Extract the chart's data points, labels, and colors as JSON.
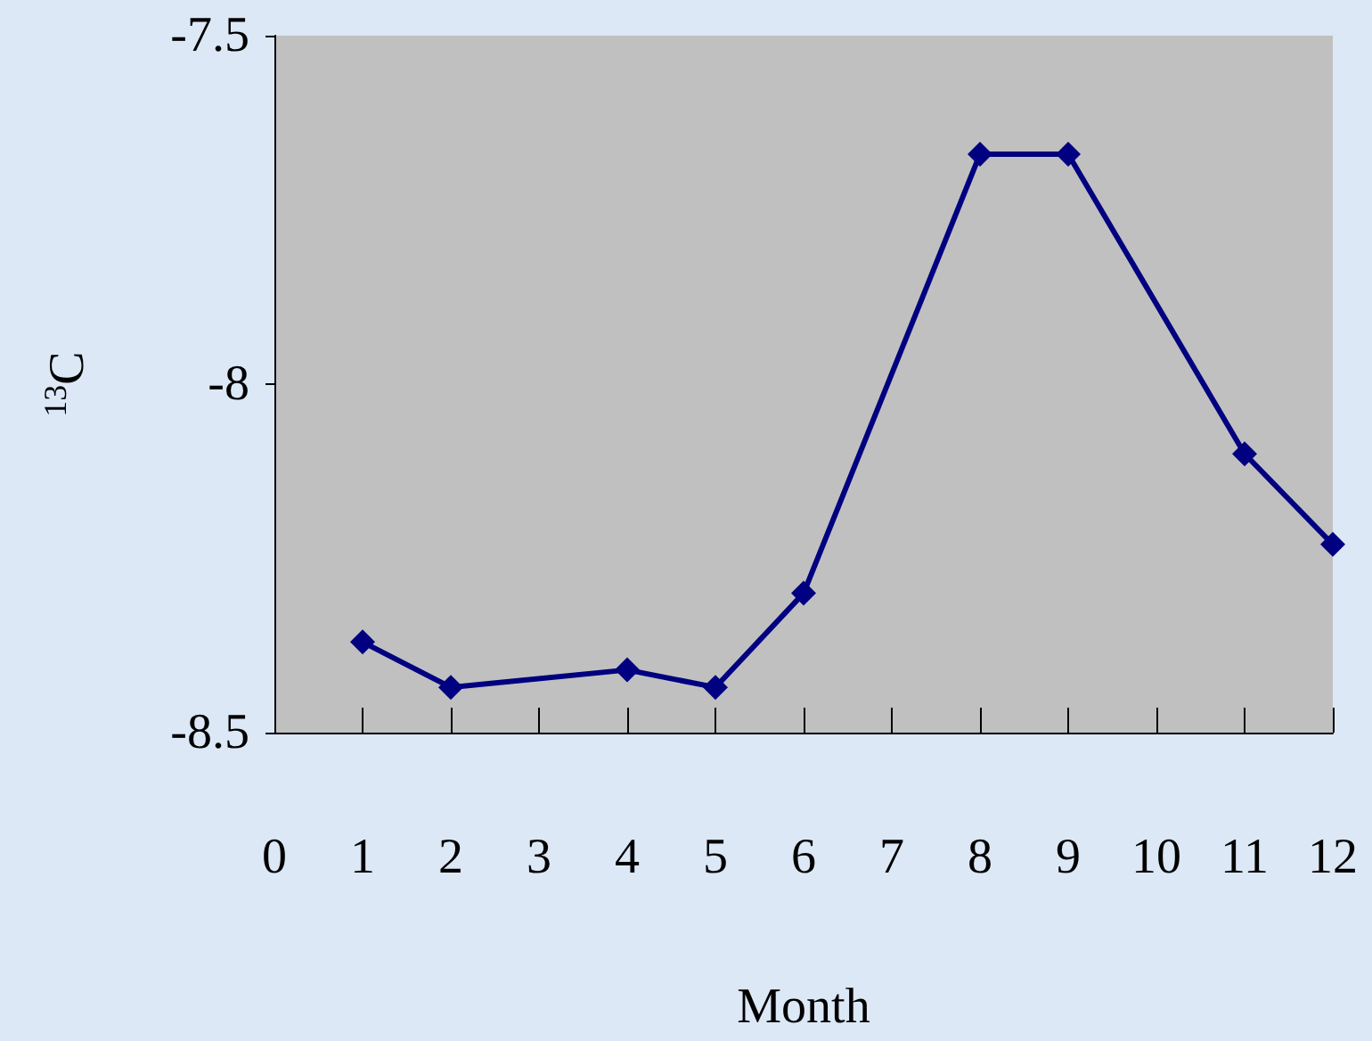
{
  "chart_data": {
    "type": "line",
    "xlabel": "Month",
    "ylabel": "$^{13}$C",
    "x": [
      1,
      2,
      4,
      5,
      6,
      8,
      9,
      11,
      12
    ],
    "series": [
      {
        "color": "#000080",
        "values": [
          -8.37,
          -8.435,
          -8.41,
          -8.435,
          -8.3,
          -7.67,
          -7.67,
          -8.1,
          -8.23
        ]
      }
    ],
    "xlim": [
      0,
      12
    ],
    "xticks": [
      0,
      1,
      2,
      3,
      4,
      5,
      6,
      7,
      8,
      9,
      10,
      11,
      12
    ],
    "ylim": [
      -8.5,
      -7.5
    ],
    "yticks": [
      -8.5,
      -8,
      -7.5
    ],
    "grid": false,
    "marker": "diamond",
    "line_style": "solid"
  }
}
